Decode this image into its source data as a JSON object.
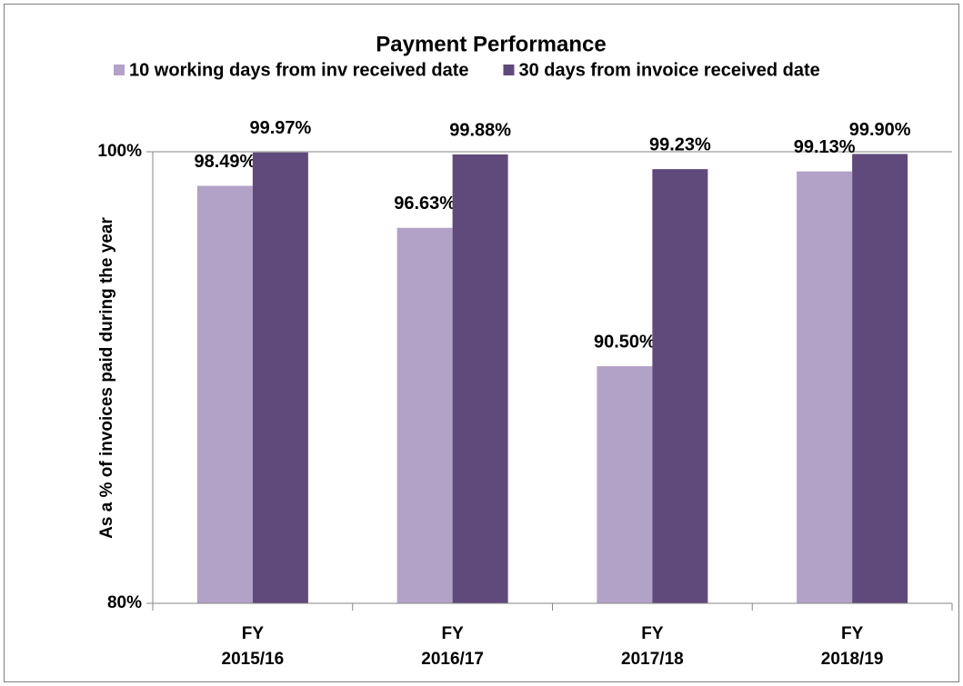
{
  "chart_data": {
    "type": "bar",
    "title": "Payment Performance",
    "y_axis_label": "As a % of invoices paid during the year",
    "categories": [
      "FY\n2015/16",
      "FY\n2016/17",
      "FY\n2017/18",
      "FY\n2018/19"
    ],
    "series": [
      {
        "name": "10 working days from inv received date",
        "color": "#b3a2c7",
        "values": [
          98.49,
          96.63,
          90.5,
          99.13
        ],
        "value_labels": [
          "98.49%",
          "96.63%",
          "90.50%",
          "99.13%"
        ]
      },
      {
        "name": "30 days from invoice received date",
        "color": "#604a7b",
        "values": [
          99.97,
          99.88,
          99.23,
          99.9
        ],
        "value_labels": [
          "99.97%",
          "99.88%",
          "99.23%",
          "99.90%"
        ]
      }
    ],
    "ylim": [
      80,
      100
    ],
    "yticks": [
      {
        "value": 80,
        "label": "80%"
      },
      {
        "value": 100,
        "label": "100%"
      }
    ],
    "grid": true,
    "legend": "top"
  }
}
